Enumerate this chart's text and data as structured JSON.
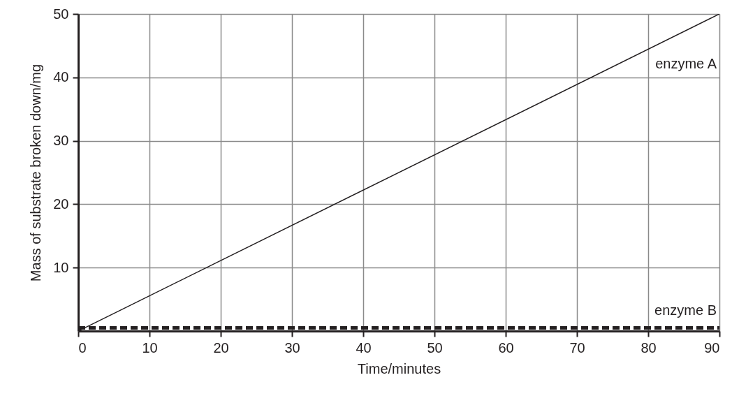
{
  "chart_data": {
    "type": "line",
    "xlabel": "Time/minutes",
    "ylabel": "Mass of substrate broken down/mg",
    "xlim": [
      0,
      90
    ],
    "ylim": [
      0,
      50
    ],
    "xticks": [
      0,
      10,
      20,
      30,
      40,
      50,
      60,
      70,
      80,
      90
    ],
    "yticks": [
      10,
      20,
      30,
      40,
      50
    ],
    "grid": true,
    "legend": false,
    "marker": "none",
    "x": [
      0,
      90
    ],
    "series": [
      {
        "name": "enzyme A",
        "values": [
          0,
          50
        ],
        "color": "#231f20",
        "line_style": "solid"
      },
      {
        "name": "enzyme B",
        "values": [
          0.5,
          0.5
        ],
        "color": "#231f20",
        "line_style": "dashed"
      }
    ]
  }
}
